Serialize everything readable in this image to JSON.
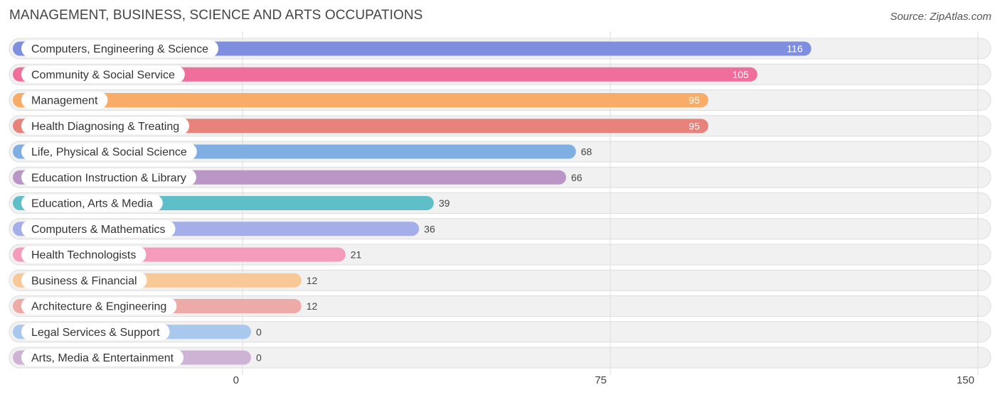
{
  "header": {
    "title": "MANAGEMENT, BUSINESS, SCIENCE AND ARTS OCCUPATIONS",
    "source": "Source: ZipAtlas.com"
  },
  "chart_data": {
    "type": "bar",
    "orientation": "horizontal",
    "title": "MANAGEMENT, BUSINESS, SCIENCE AND ARTS OCCUPATIONS",
    "xlim": [
      0,
      150
    ],
    "xticks": [
      0,
      75,
      150
    ],
    "grid": true,
    "categories": [
      "Computers, Engineering & Science",
      "Community & Social Service",
      "Management",
      "Health Diagnosing & Treating",
      "Life, Physical & Social Science",
      "Education Instruction & Library",
      "Education, Arts & Media",
      "Computers & Mathematics",
      "Health Technologists",
      "Business & Financial",
      "Architecture & Engineering",
      "Legal Services & Support",
      "Arts, Media & Entertainment"
    ],
    "values": [
      116,
      105,
      95,
      95,
      68,
      66,
      39,
      36,
      21,
      12,
      12,
      0,
      0
    ],
    "colors": [
      "#7f8fdf",
      "#f06e9c",
      "#f8ac68",
      "#e8837c",
      "#7faee2",
      "#b996c6",
      "#5fbfc9",
      "#a4aee9",
      "#f59bbb",
      "#f9c897",
      "#eeaaa6",
      "#a9c8ee",
      "#cfb3d6"
    ]
  }
}
